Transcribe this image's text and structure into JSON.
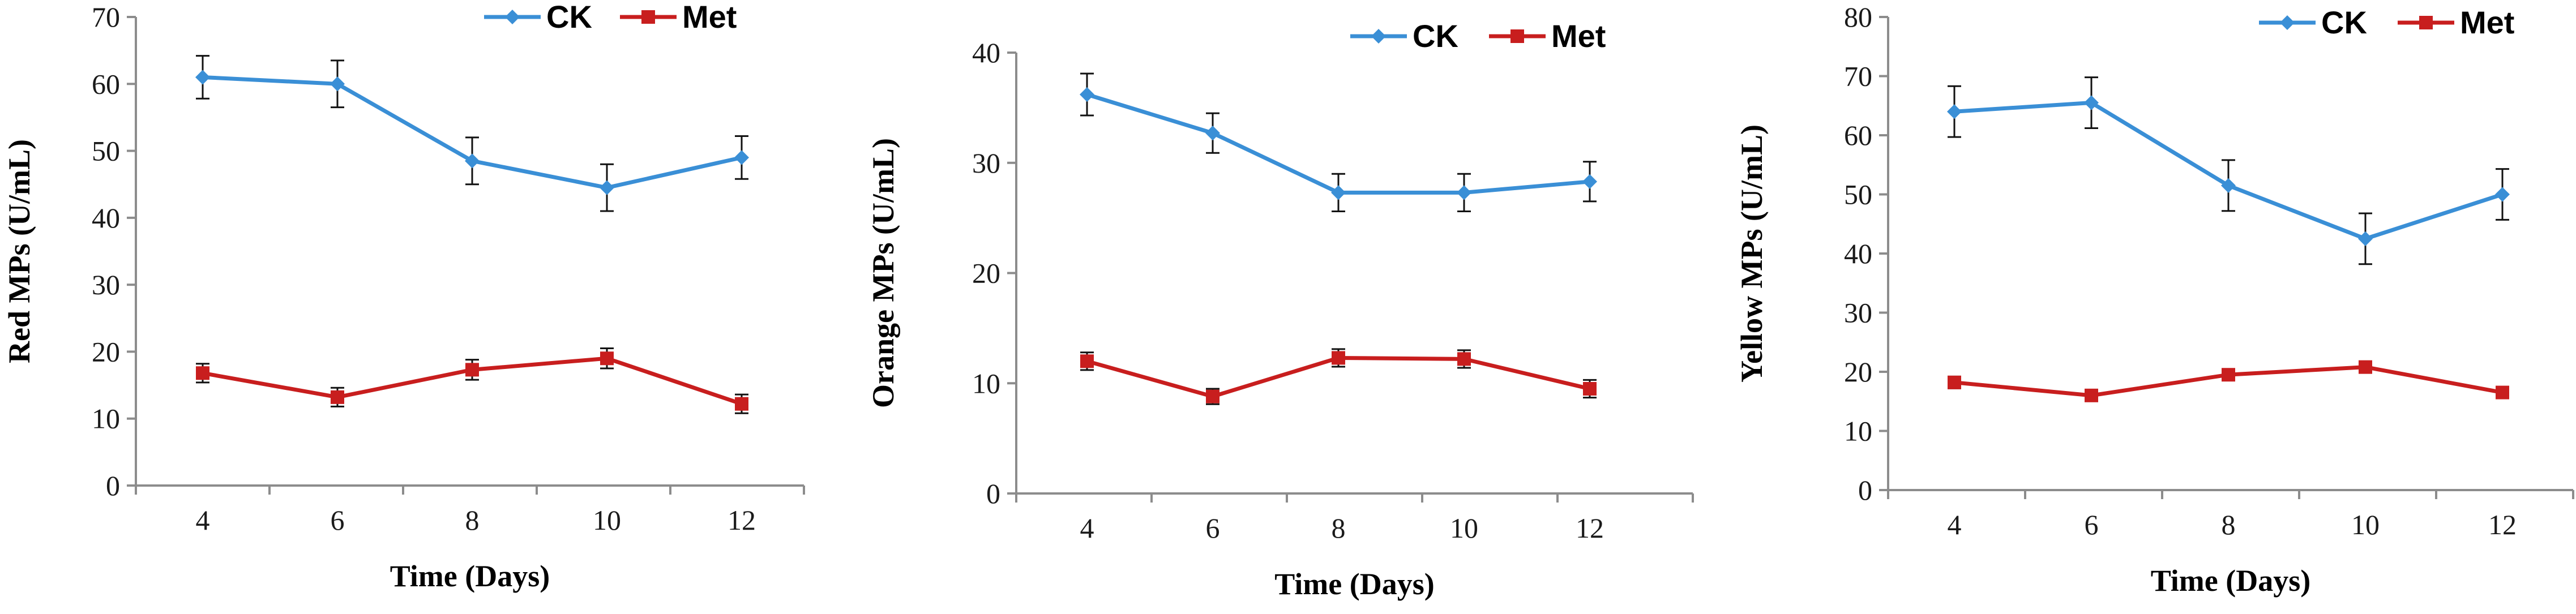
{
  "chart_data": [
    {
      "type": "line",
      "categories": [
        "4",
        "6",
        "8",
        "10",
        "12"
      ],
      "xlabel": "Time (Days)",
      "ylabel": "Red MPs (U/mL)",
      "ylim": [
        0,
        70
      ],
      "yticks": [
        "0",
        "10",
        "20",
        "30",
        "40",
        "50",
        "60",
        "70"
      ],
      "series": [
        {
          "name": "CK",
          "color": "#3A8FD6",
          "marker": "diamond",
          "values": [
            61,
            60,
            48.5,
            44.5,
            49
          ],
          "errors": [
            3.2,
            3.5,
            3.5,
            3.5,
            3.2
          ]
        },
        {
          "name": "Met",
          "color": "#C81E1E",
          "marker": "square",
          "values": [
            16.8,
            13.2,
            17.3,
            19,
            12.2
          ],
          "errors": [
            1.4,
            1.4,
            1.5,
            1.5,
            1.4
          ]
        }
      ]
    },
    {
      "type": "line",
      "categories": [
        "4",
        "6",
        "8",
        "10",
        "12"
      ],
      "xlabel": "Time (Days)",
      "ylabel": "Orange MPs (U/mL)",
      "ylim": [
        0,
        40
      ],
      "yticks": [
        "0",
        "10",
        "20",
        "30",
        "40"
      ],
      "series": [
        {
          "name": "CK",
          "color": "#3A8FD6",
          "marker": "diamond",
          "values": [
            36.2,
            32.7,
            27.3,
            27.3,
            28.3
          ],
          "errors": [
            1.9,
            1.8,
            1.7,
            1.7,
            1.8
          ]
        },
        {
          "name": "Met",
          "color": "#C81E1E",
          "marker": "square",
          "values": [
            12,
            8.8,
            12.3,
            12.2,
            9.5
          ],
          "errors": [
            0.8,
            0.7,
            0.8,
            0.8,
            0.8
          ]
        }
      ]
    },
    {
      "type": "line",
      "categories": [
        "4",
        "6",
        "8",
        "10",
        "12"
      ],
      "xlabel": "Time (Days)",
      "ylabel": "Yellow MPs (U/mL)",
      "ylim": [
        0,
        80
      ],
      "yticks": [
        "0",
        "10",
        "20",
        "30",
        "40",
        "50",
        "60",
        "70",
        "80"
      ],
      "series": [
        {
          "name": "CK",
          "color": "#3A8FD6",
          "marker": "diamond",
          "values": [
            64,
            65.5,
            51.5,
            42.5,
            50
          ],
          "errors": [
            4.3,
            4.3,
            4.3,
            4.3,
            4.3
          ]
        },
        {
          "name": "Met",
          "color": "#C81E1E",
          "marker": "square",
          "values": [
            18.2,
            16,
            19.5,
            20.8,
            16.5
          ],
          "errors": [
            1,
            0.8,
            0.9,
            0.9,
            0.9
          ]
        }
      ]
    }
  ]
}
